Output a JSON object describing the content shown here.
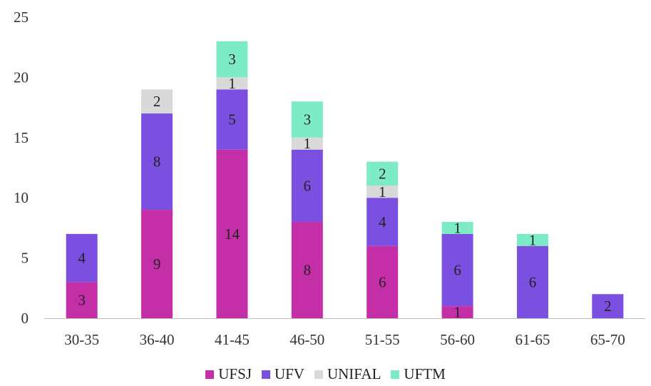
{
  "chart_data": {
    "type": "bar",
    "stacked": true,
    "categories": [
      "30-35",
      "36-40",
      "41-45",
      "46-50",
      "51-55",
      "56-60",
      "61-65",
      "65-70"
    ],
    "series": [
      {
        "name": "UFSJ",
        "color": "#C42EA6",
        "values": [
          3,
          9,
          14,
          8,
          6,
          1,
          0,
          0
        ]
      },
      {
        "name": "UFV",
        "color": "#7B4FE0",
        "values": [
          4,
          8,
          5,
          6,
          4,
          6,
          6,
          2
        ]
      },
      {
        "name": "UNIFAL",
        "color": "#D9D9D9",
        "values": [
          0,
          2,
          1,
          1,
          1,
          0,
          0,
          0
        ]
      },
      {
        "name": "UFTM",
        "color": "#7EEBC7",
        "values": [
          0,
          0,
          3,
          3,
          2,
          1,
          1,
          0
        ]
      }
    ],
    "y_ticks": [
      "0",
      "5",
      "10",
      "15",
      "20",
      "25"
    ],
    "ylim": [
      0,
      25
    ],
    "grid": false,
    "legend_position": "bottom",
    "title": "",
    "xlabel": "",
    "ylabel": ""
  }
}
